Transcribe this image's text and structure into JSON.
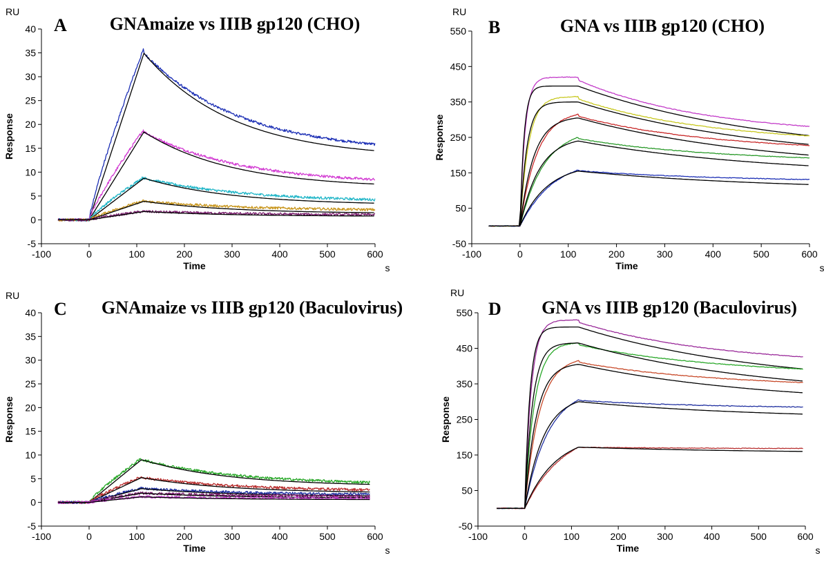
{
  "chart_data": [
    {
      "type": "line",
      "letter": "A",
      "title": "GNAmaize vs IIIB gp120 (CHO)",
      "xlabel": "Time",
      "ylabel": "Response",
      "x_unit": "s",
      "y_unit": "RU",
      "xlim": [
        -100,
        600
      ],
      "ylim": [
        -5,
        40
      ],
      "xticks": [
        "-100",
        "0",
        "100",
        "200",
        "300",
        "400",
        "500",
        "600"
      ],
      "yticks": [
        "-5",
        "0",
        "5",
        "10",
        "15",
        "20",
        "25",
        "30",
        "35",
        "40"
      ],
      "baseline_start": -65,
      "injection_end": 115,
      "x_end": 600,
      "noisy": true,
      "series": [
        {
          "color": "#1c2fb5",
          "peak": 36,
          "end": 15,
          "fit_end": 14.5
        },
        {
          "color": "#d23ad2",
          "peak": 19,
          "end": 8,
          "fit_end": 7.5
        },
        {
          "color": "#22b6c8",
          "peak": 9,
          "end": 4,
          "fit_end": 3.5
        },
        {
          "color": "#c8961e",
          "peak": 4,
          "end": 2,
          "fit_end": 1.5
        },
        {
          "color": "#7a1f6e",
          "peak": 1.8,
          "end": 1,
          "fit_end": 0.8
        }
      ]
    },
    {
      "type": "line",
      "letter": "B",
      "title": "GNA vs IIIB gp120 (CHO)",
      "xlabel": "Time",
      "ylabel": "Response",
      "x_unit": "s",
      "y_unit": "RU",
      "xlim": [
        -100,
        600
      ],
      "ylim": [
        -50,
        550
      ],
      "xticks": [
        "-100",
        "0",
        "100",
        "200",
        "300",
        "400",
        "500",
        "600"
      ],
      "yticks": [
        "-50",
        "50",
        "150",
        "250",
        "350",
        "450",
        "550"
      ],
      "baseline_start": -65,
      "injection_end": 120,
      "x_end": 600,
      "noisy": false,
      "series": [
        {
          "color": "#c23ac8",
          "peak": 420,
          "end": 260,
          "fit_peak": 395,
          "fit_end": 255,
          "fit_k": 0.12
        },
        {
          "color": "#c8c820",
          "peak": 365,
          "end": 235,
          "fit_peak": 350,
          "fit_end": 230,
          "fit_k": 0.07
        },
        {
          "color": "#c82828",
          "peak": 315,
          "end": 210,
          "fit_peak": 305,
          "fit_end": 200,
          "fit_k": 0.035
        },
        {
          "color": "#2a9a2a",
          "peak": 250,
          "end": 178,
          "fit_peak": 240,
          "fit_end": 170,
          "fit_k": 0.025
        },
        {
          "color": "#1c2fb5",
          "peak": 158,
          "end": 122,
          "fit_peak": 155,
          "fit_end": 117,
          "fit_k": 0.018
        }
      ]
    },
    {
      "type": "line",
      "letter": "C",
      "title": "GNAmaize vs IIIB gp120 (Baculovirus)",
      "xlabel": "Time",
      "ylabel": "Response",
      "x_unit": "s",
      "y_unit": "RU",
      "xlim": [
        -100,
        600
      ],
      "ylim": [
        -5,
        40
      ],
      "xticks": [
        "-100",
        "0",
        "100",
        "200",
        "300",
        "400",
        "500",
        "600"
      ],
      "yticks": [
        "-5",
        "0",
        "5",
        "10",
        "15",
        "20",
        "25",
        "30",
        "35",
        "40"
      ],
      "baseline_start": -65,
      "injection_end": 110,
      "x_end": 590,
      "noisy": true,
      "series": [
        {
          "color": "#2aa82a",
          "peak": 9.3,
          "end": 4,
          "fit_end": 3.8
        },
        {
          "color": "#b83030",
          "peak": 5.4,
          "end": 2.5,
          "fit_end": 2.2
        },
        {
          "color": "#2030a0",
          "peak": 3,
          "end": 1.6,
          "fit_end": 1.4
        },
        {
          "color": "#7a1f6e",
          "peak": 2,
          "end": 1.2,
          "fit_end": 1.0
        },
        {
          "color": "#c03ac8",
          "peak": 1.2,
          "end": 0.8,
          "fit_end": 0.6
        }
      ]
    },
    {
      "type": "line",
      "letter": "D",
      "title": "GNA vs IIIB gp120 (Baculovirus)",
      "xlabel": "Time",
      "ylabel": "Response",
      "x_unit": "s",
      "y_unit": "RU",
      "xlim": [
        -100,
        600
      ],
      "ylim": [
        -50,
        550
      ],
      "xticks": [
        "-100",
        "0",
        "100",
        "200",
        "300",
        "400",
        "500",
        "600"
      ],
      "yticks": [
        "-50",
        "50",
        "150",
        "250",
        "350",
        "450",
        "550"
      ],
      "baseline_start": -60,
      "injection_end": 115,
      "x_end": 595,
      "noisy": false,
      "series": [
        {
          "color": "#9a2a9a",
          "peak": 530,
          "end": 395,
          "fit_peak": 510,
          "fit_end": 392,
          "fit_k": 0.09
        },
        {
          "color": "#2aa82a",
          "peak": 465,
          "end": 365,
          "fit_peak": 465,
          "fit_end": 358,
          "fit_k": 0.06
        },
        {
          "color": "#c84a2a",
          "peak": 415,
          "end": 330,
          "fit_peak": 405,
          "fit_end": 325,
          "fit_k": 0.04
        },
        {
          "color": "#2030a0",
          "peak": 305,
          "end": 272,
          "fit_peak": 300,
          "fit_end": 265,
          "fit_k": 0.025
        },
        {
          "color": "#b83030",
          "peak": 172,
          "end": 165,
          "fit_peak": 172,
          "fit_end": 160,
          "fit_k": 0.015
        }
      ]
    }
  ]
}
